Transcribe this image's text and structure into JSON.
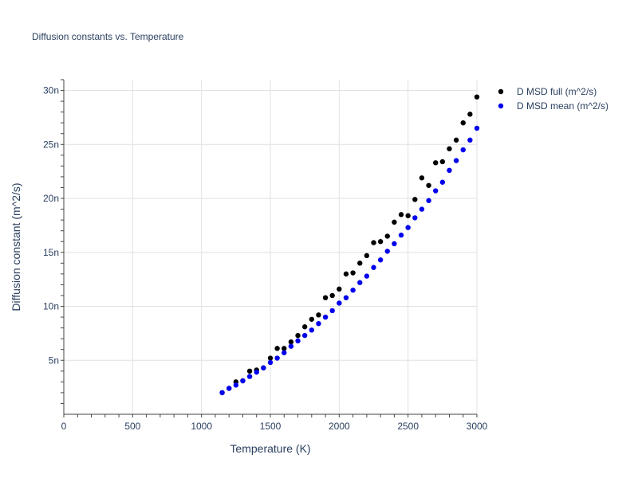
{
  "chart_data": {
    "type": "scatter",
    "title": "Diffusion constants vs. Temperature",
    "xlabel": "Temperature (K)",
    "ylabel": "Diffusion constant (m^2/s)",
    "xlim": [
      0,
      3000
    ],
    "ylim": [
      0,
      31
    ],
    "x_ticks": [
      0,
      500,
      1000,
      1500,
      2000,
      2500,
      3000
    ],
    "x_tick_labels": [
      "0",
      "500",
      "1000",
      "1500",
      "2000",
      "2500",
      "3000"
    ],
    "y_ticks": [
      5,
      10,
      15,
      20,
      25,
      30
    ],
    "y_tick_labels": [
      "5n",
      "10n",
      "15n",
      "20n",
      "25n",
      "30n"
    ],
    "grid": true,
    "legend_position": "top-right",
    "x": [
      1150,
      1200,
      1250,
      1300,
      1350,
      1400,
      1450,
      1500,
      1550,
      1600,
      1650,
      1700,
      1750,
      1800,
      1850,
      1900,
      1950,
      2000,
      2050,
      2100,
      2150,
      2200,
      2250,
      2300,
      2350,
      2400,
      2450,
      2500,
      2550,
      2600,
      2650,
      2700,
      2750,
      2800,
      2850,
      2900,
      2950,
      3000
    ],
    "series": [
      {
        "name": "D MSD full (m^2/s)",
        "color": "#000000",
        "values": [
          2.0,
          2.4,
          3.0,
          3.1,
          4.0,
          4.1,
          4.3,
          5.2,
          6.1,
          6.1,
          6.7,
          7.3,
          8.1,
          8.8,
          9.2,
          10.8,
          11.0,
          11.6,
          13.0,
          13.1,
          14.0,
          14.7,
          15.9,
          16.0,
          16.5,
          17.8,
          18.5,
          18.4,
          19.9,
          21.9,
          21.2,
          23.3,
          23.4,
          24.6,
          25.4,
          27.0,
          27.8,
          29.4
        ]
      },
      {
        "name": "D MSD mean (m^2/s)",
        "color": "#0000ee",
        "values": [
          2.0,
          2.4,
          2.7,
          3.1,
          3.5,
          3.9,
          4.3,
          4.8,
          5.2,
          5.7,
          6.3,
          6.8,
          7.3,
          7.8,
          8.4,
          9.0,
          9.6,
          10.3,
          10.8,
          11.5,
          12.2,
          12.8,
          13.6,
          14.3,
          15.1,
          15.8,
          16.6,
          17.3,
          18.2,
          19.0,
          19.8,
          20.7,
          21.5,
          22.6,
          23.5,
          24.5,
          25.4,
          26.5
        ]
      }
    ]
  }
}
